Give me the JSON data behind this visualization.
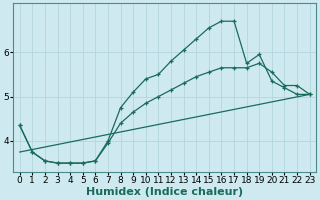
{
  "xlabel": "Humidex (Indice chaleur)",
  "background_color": "#ceeaf0",
  "grid_color": "#b8d8e0",
  "line_color": "#1a6b5a",
  "xlim": [
    -0.5,
    23.5
  ],
  "ylim": [
    3.3,
    7.1
  ],
  "yticks": [
    4,
    5,
    6
  ],
  "xticks": [
    0,
    1,
    2,
    3,
    4,
    5,
    6,
    7,
    8,
    9,
    10,
    11,
    12,
    13,
    14,
    15,
    16,
    17,
    18,
    19,
    20,
    21,
    22,
    23
  ],
  "curve1_x": [
    0,
    1,
    2,
    3,
    4,
    5,
    6,
    7,
    8,
    9,
    10,
    11,
    12,
    13,
    14,
    15,
    16,
    17,
    18,
    19,
    20,
    21,
    22,
    23
  ],
  "curve1_y": [
    4.35,
    3.75,
    3.55,
    3.5,
    3.5,
    3.5,
    3.55,
    4.0,
    4.75,
    5.1,
    5.4,
    5.5,
    5.8,
    6.05,
    6.3,
    6.55,
    6.7,
    6.7,
    5.75,
    5.95,
    5.35,
    5.2,
    5.05,
    5.05
  ],
  "curve2_x": [
    0,
    1,
    2,
    3,
    4,
    5,
    6,
    7,
    8,
    9,
    10,
    11,
    12,
    13,
    14,
    15,
    16,
    17,
    18,
    19,
    20,
    21,
    22,
    23
  ],
  "curve2_y": [
    4.35,
    3.75,
    3.55,
    3.5,
    3.5,
    3.5,
    3.55,
    3.95,
    4.4,
    4.65,
    4.85,
    5.0,
    5.15,
    5.3,
    5.45,
    5.55,
    5.65,
    5.65,
    5.65,
    5.75,
    5.55,
    5.25,
    5.25,
    5.05
  ],
  "curve3_x": [
    0,
    23
  ],
  "curve3_y": [
    3.75,
    5.05
  ],
  "marker_size": 3.5,
  "tick_fontsize": 6.5,
  "label_fontsize": 8
}
